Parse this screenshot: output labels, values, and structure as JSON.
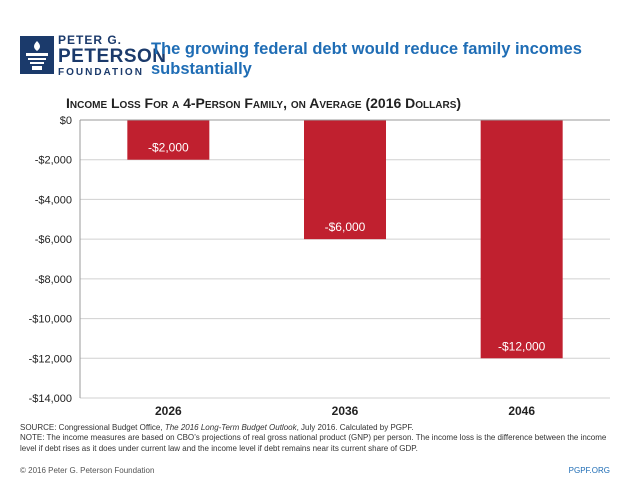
{
  "logo": {
    "line1": "PETER G.",
    "line2": "PETERSON",
    "line3": "FOUNDATION"
  },
  "headline": "The growing federal debt would reduce family incomes substantially",
  "colors": {
    "bar": "#c0202f",
    "brand": "#1b3a6b",
    "accent": "#1f6db5",
    "grid": "#d0d0d0"
  },
  "chart_data": {
    "type": "bar",
    "title": "Income Loss For a 4-Person Family, on Average (2016 Dollars)",
    "categories": [
      "2026",
      "2036",
      "2046"
    ],
    "values": [
      -2000,
      -6000,
      -12000
    ],
    "data_labels": [
      "-$2,000",
      "-$6,000",
      "-$12,000"
    ],
    "ylim": [
      -14000,
      0
    ],
    "yticks": [
      0,
      -2000,
      -4000,
      -6000,
      -8000,
      -10000,
      -12000,
      -14000
    ],
    "ytick_labels": [
      "$0",
      "-$2,000",
      "-$4,000",
      "-$6,000",
      "-$8,000",
      "-$10,000",
      "-$12,000",
      "-$14,000"
    ],
    "grid": "horizontal",
    "legend": "none"
  },
  "notes": {
    "source_prefix": "SOURCE: Congressional Budget Office, ",
    "source_title": "The 2016 Long-Term Budget Outlook",
    "source_suffix": ", July 2016. Calculated by PGPF.",
    "note": "NOTE: The income measures are based on CBO’s projections of real gross national product (GNP) per person. The income loss is the difference between the income level if debt rises as it does under current law and the income level if debt remains near its current share of GDP."
  },
  "footer": {
    "copyright": "© 2016 Peter G. Peterson Foundation",
    "url": "PGPF.ORG"
  }
}
